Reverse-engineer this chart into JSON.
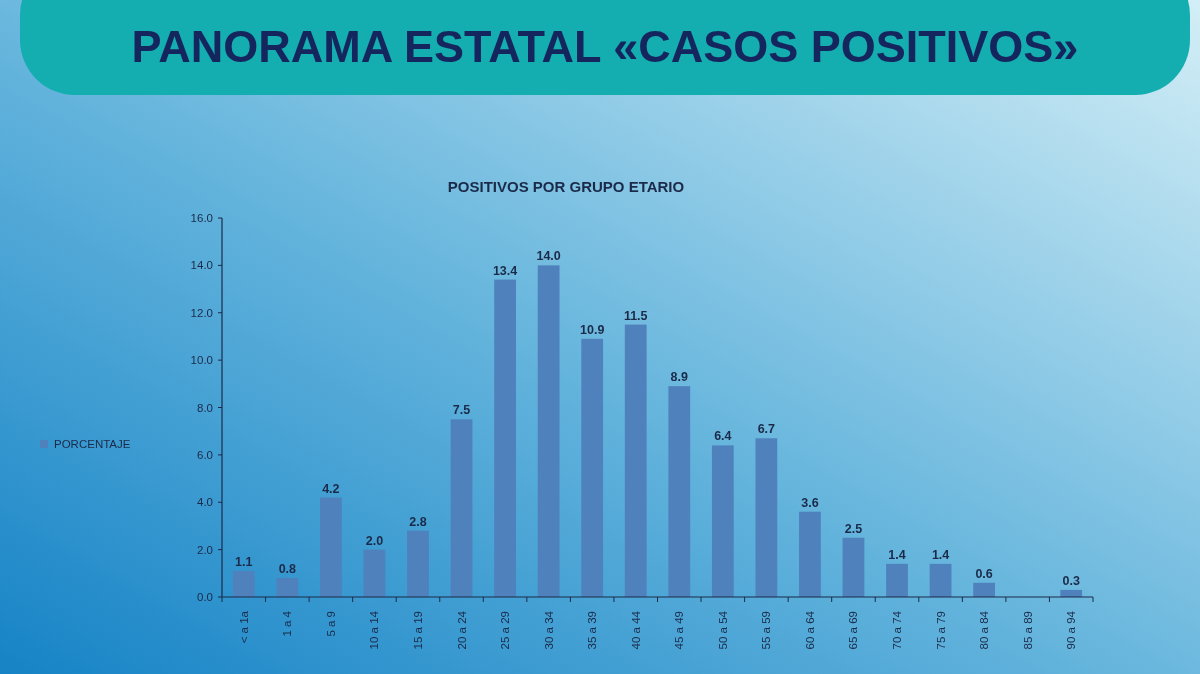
{
  "chart_data": {
    "type": "bar",
    "title": "PANORAMA ESTATAL «CASOS POSITIVOS»",
    "subtitle": "POSITIVOS POR GRUPO ETARIO",
    "categories": [
      "< a 1a",
      "1 a 4",
      "5 a 9",
      "10 a 14",
      "15 a 19",
      "20 a 24",
      "25 a 29",
      "30 a 34",
      "35 a 39",
      "40 a 44",
      "45 a 49",
      "50 a 54",
      "55 a 59",
      "60 a 64",
      "65 a 69",
      "70 a 74",
      "75 a 79",
      "80 a 84",
      "85 a 89",
      "90 a 94"
    ],
    "series": [
      {
        "name": "PORCENTAJE",
        "color": "#4f81bd",
        "values": [
          1.1,
          0.8,
          4.2,
          2.0,
          2.8,
          7.5,
          13.4,
          14.0,
          10.9,
          11.5,
          8.9,
          6.4,
          6.7,
          3.6,
          2.5,
          1.4,
          1.4,
          0.6,
          null,
          0.3
        ],
        "value_labels": [
          "1.1",
          "0.8",
          "4.2",
          "2.0",
          "2.8",
          "7.5",
          "13.4",
          "14.0",
          "10.9",
          "11.5",
          "8.9",
          "6.4",
          "6.7",
          "3.6",
          "2.5",
          "1.4",
          "1.4",
          "0.6",
          null,
          "0.3"
        ]
      }
    ],
    "ylim": [
      0,
      16
    ],
    "yticks": [
      {
        "value": 0,
        "label": "0.0"
      },
      {
        "value": 2,
        "label": "2.0"
      },
      {
        "value": 4,
        "label": "4.0"
      },
      {
        "value": 6,
        "label": "6.0"
      },
      {
        "value": 8,
        "label": "8.0"
      },
      {
        "value": 10,
        "label": "10.0"
      },
      {
        "value": 12,
        "label": "12.0"
      },
      {
        "value": 14,
        "label": "14.0"
      },
      {
        "value": 16,
        "label": "16.0"
      }
    ],
    "legend": "left"
  }
}
